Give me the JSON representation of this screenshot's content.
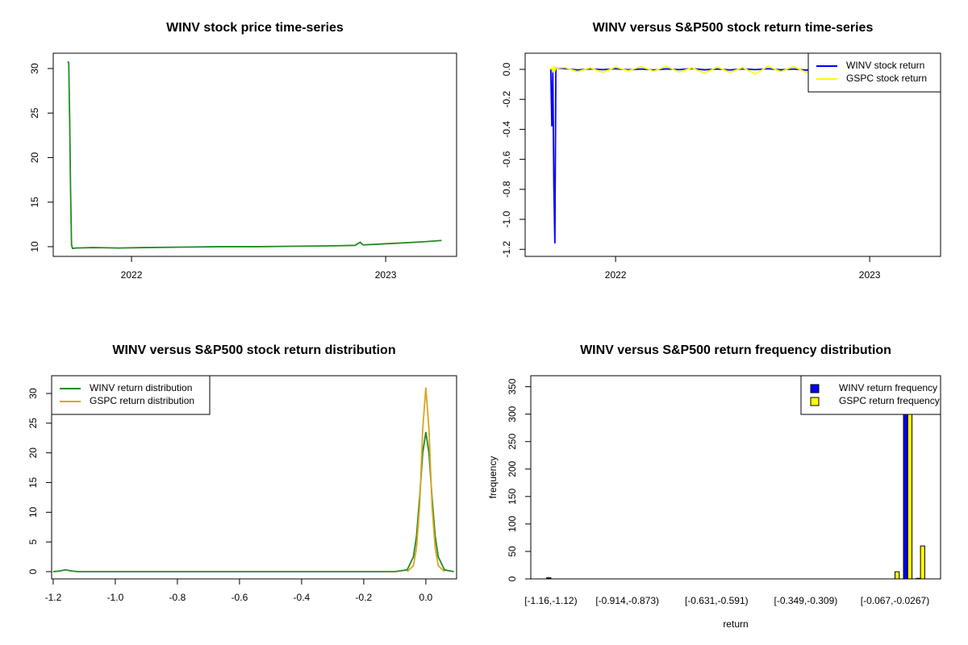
{
  "chart_data": [
    {
      "type": "line",
      "title": "WINV stock price time-series",
      "xlim": [
        2021.692,
        2023.279
      ],
      "xticks": [
        2022,
        2023
      ],
      "ylim": [
        8.91,
        31.72
      ],
      "yticks": [
        10,
        15,
        20,
        25,
        30
      ],
      "series": [
        {
          "color": "#228b22",
          "x": [
            2021.75,
            2021.753,
            2021.757,
            2021.76,
            2021.764,
            2021.768,
            2021.78,
            2021.85,
            2021.95,
            2022.05,
            2022.2,
            2022.35,
            2022.5,
            2022.65,
            2022.8,
            2022.88,
            2022.9,
            2022.91,
            2022.95,
            2023.05,
            2023.15,
            2023.22
          ],
          "values": [
            30.8,
            30.6,
            23.7,
            16.7,
            10.2,
            9.8,
            9.85,
            9.9,
            9.85,
            9.9,
            9.95,
            10.0,
            10.0,
            10.05,
            10.1,
            10.15,
            10.5,
            10.2,
            10.25,
            10.4,
            10.55,
            10.7
          ]
        }
      ]
    },
    {
      "type": "line",
      "title": "WINV versus S&P500 stock return time-series",
      "xlim": [
        2021.644,
        2023.279
      ],
      "xticks": [
        2022,
        2023
      ],
      "ylim": [
        -1.247,
        0.1075
      ],
      "yticks": [
        {
          "value": 0,
          "label": "0.0"
        },
        -0.2,
        -0.4,
        -0.6,
        -0.8,
        {
          "value": -1,
          "label": "-1.0"
        },
        -1.2
      ],
      "legend": "topright",
      "x": [
        2021.745,
        2021.749,
        2021.753,
        2021.757,
        2021.761,
        2021.765,
        2021.8,
        2021.85,
        2021.9,
        2021.95,
        2022.0,
        2022.05,
        2022.1,
        2022.15,
        2022.2,
        2022.25,
        2022.3,
        2022.35,
        2022.4,
        2022.45,
        2022.5,
        2022.55,
        2022.6,
        2022.65,
        2022.7,
        2022.75,
        2022.8,
        2022.85,
        2022.9,
        2022.95,
        2023.0,
        2023.05,
        2023.1,
        2023.15,
        2023.2
      ],
      "series": [
        {
          "name": "WINV stock return",
          "color": "#0000ff",
          "values": [
            0,
            -0.38,
            -0.01,
            -0.77,
            -1.16,
            0.01,
            0.005,
            -0.004,
            0.003,
            -0.002,
            0.004,
            -0.003,
            0.002,
            -0.004,
            0.003,
            -0.002,
            0.005,
            -0.003,
            0.002,
            -0.004,
            0.003,
            -0.002,
            0.004,
            -0.003,
            0.002,
            -0.005,
            0.003,
            -0.002,
            0.004,
            -0.003,
            0.002,
            -0.004,
            0.003,
            -0.002,
            0.004
          ]
        },
        {
          "name": "GSPC stock return",
          "color": "#ffff00",
          "values": [
            0,
            0.01,
            -0.01,
            0.015,
            -0.01,
            0.01,
            0.012,
            -0.015,
            0.01,
            -0.02,
            0.015,
            -0.01,
            0.018,
            -0.012,
            0.02,
            -0.018,
            0.01,
            -0.025,
            0.015,
            -0.02,
            0.012,
            -0.03,
            0.02,
            -0.015,
            0.018,
            -0.02,
            0.012,
            -0.01,
            0.015,
            -0.018,
            0.01,
            -0.012,
            0.015,
            -0.01,
            0.012
          ]
        }
      ]
    },
    {
      "type": "line",
      "title": "WINV versus S&P500 stock return distribution",
      "xlim": [
        -1.205,
        0.099
      ],
      "xticks": [
        -1.2,
        {
          "value": -1,
          "label": "-1.0"
        },
        -0.8,
        -0.6,
        -0.4,
        -0.2,
        {
          "value": 0,
          "label": "0.0"
        }
      ],
      "ylim": [
        -1.22,
        32.99
      ],
      "yticks": [
        0,
        5,
        10,
        15,
        20,
        25,
        30
      ],
      "legend": "topleft",
      "series": [
        {
          "name": "WINV return distribution",
          "color": "#228b22",
          "x": [
            -1.2,
            -1.18,
            -1.16,
            -1.14,
            -1.12,
            -0.8,
            -0.4,
            -0.1,
            -0.06,
            -0.04,
            -0.03,
            -0.02,
            -0.01,
            0,
            0.01,
            0.02,
            0.03,
            0.04,
            0.06,
            0.09
          ],
          "values": [
            0,
            0.1,
            0.3,
            0.1,
            0,
            0,
            0,
            0,
            0.3,
            2.5,
            6,
            12.5,
            20,
            23.5,
            20,
            12.5,
            6,
            2.5,
            0.3,
            0
          ]
        },
        {
          "name": "GSPC return distribution",
          "color": "#daa520",
          "x": [
            -0.06,
            -0.04,
            -0.03,
            -0.02,
            -0.01,
            0,
            0.01,
            0.02,
            0.03,
            0.04,
            0.06
          ],
          "values": [
            0,
            1,
            4,
            11,
            24,
            31,
            24,
            11,
            4,
            1,
            0
          ]
        }
      ]
    },
    {
      "type": "bar",
      "title": "WINV versus S&P500 return frequency distribution",
      "x_label": "return",
      "y_label": "frequency",
      "ylim": [
        0,
        370
      ],
      "yticks": [
        0,
        50,
        100,
        150,
        200,
        250,
        300,
        350
      ],
      "legend": "topright",
      "categories": [
        "[-1.16,-1.12)",
        null,
        null,
        null,
        null,
        null,
        "[-0.914,-0.873)",
        null,
        null,
        null,
        null,
        null,
        null,
        "[-0.631,-0.591)",
        null,
        null,
        null,
        null,
        null,
        null,
        "[-0.349,-0.309)",
        null,
        null,
        null,
        null,
        null,
        null,
        "[-0.067,-0.0267)",
        null,
        null
      ],
      "series": [
        {
          "name": "WINV return frequency",
          "color": "#0000ff",
          "values": [
            2,
            0,
            0,
            0,
            0,
            0,
            0,
            0,
            0,
            0,
            0,
            0,
            0,
            0,
            0,
            0,
            0,
            0,
            0,
            0,
            0,
            0,
            0,
            0,
            0,
            0,
            0,
            0,
            330,
            1
          ]
        },
        {
          "name": "GSPC return frequency",
          "color": "#ffff00",
          "values": [
            0,
            0,
            0,
            0,
            0,
            0,
            0,
            0,
            0,
            0,
            0,
            0,
            0,
            0,
            0,
            0,
            0,
            0,
            0,
            0,
            0,
            0,
            0,
            0,
            0,
            0,
            0,
            13,
            302,
            60
          ]
        }
      ]
    }
  ]
}
